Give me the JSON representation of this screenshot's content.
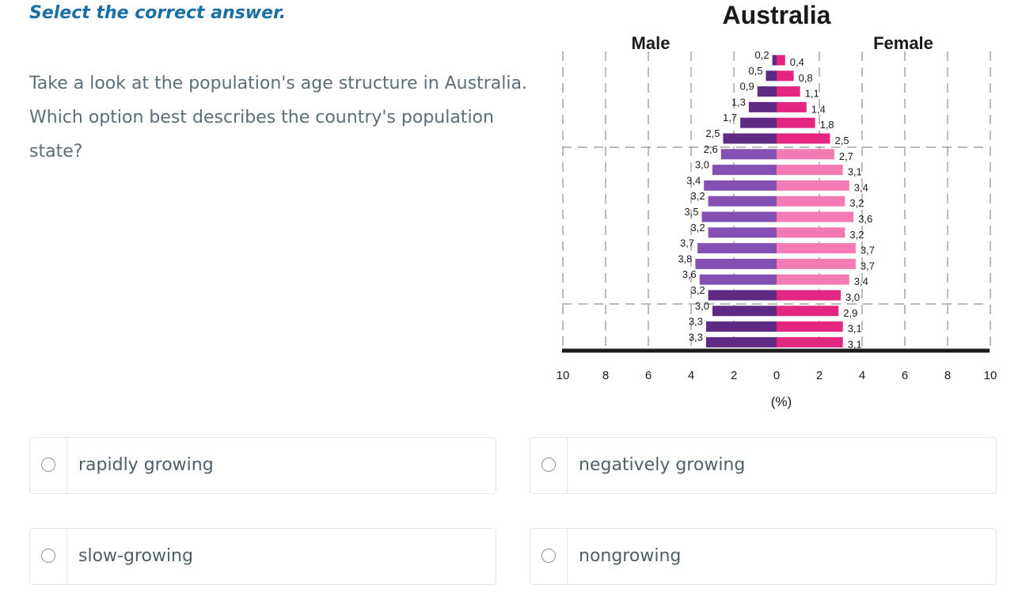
{
  "instruction": "Select the correct answer.",
  "question": "Take a look at the population's age structure in Australia. Which option best describes the country's population state?",
  "chart_data": {
    "type": "bar",
    "subtype": "population-pyramid",
    "title": "Australia",
    "left_label": "Male",
    "right_label": "Female",
    "xlabel": "(%)",
    "x_ticks": [
      "10",
      "8",
      "6",
      "4",
      "2",
      "0",
      "2",
      "4",
      "6",
      "8",
      "10"
    ],
    "xlim": [
      -10,
      10
    ],
    "grid": "dashed vertical lines; dashed horizontal lines separating age groups",
    "series": [
      {
        "name": "Male",
        "values": [
          0.2,
          0.5,
          0.9,
          1.3,
          1.7,
          2.5,
          2.6,
          3.0,
          3.4,
          3.2,
          3.5,
          3.2,
          3.7,
          3.8,
          3.6,
          3.2,
          3.0,
          3.3,
          3.3
        ],
        "labels": [
          "0,2",
          "0,5",
          "0,9",
          "1,3",
          "1,7",
          "2,5",
          "2,6",
          "3,0",
          "3,4",
          "3,2",
          "3,5",
          "3,2",
          "3,7",
          "3,8",
          "3,6",
          "3,2",
          "3,0",
          "3,3",
          "3,3"
        ]
      },
      {
        "name": "Female",
        "values": [
          0.4,
          0.8,
          1.1,
          1.4,
          1.8,
          2.5,
          2.7,
          3.1,
          3.4,
          3.2,
          3.6,
          3.2,
          3.7,
          3.7,
          3.4,
          3.0,
          2.9,
          3.1,
          3.1
        ],
        "labels": [
          "0,4",
          "0,8",
          "1,1",
          "1,4",
          "1,8",
          "2,5",
          "2,7",
          "3,1",
          "3,4",
          "3,2",
          "3,6",
          "3,2",
          "3,7",
          "3,7",
          "3,4",
          "3,0",
          "2,9",
          "3,1",
          "3,1"
        ]
      }
    ],
    "colors": {
      "male_dark": "#5e2a84",
      "male_light": "#8550b4",
      "female_dark": "#e3267f",
      "female_light": "#f47ab4"
    }
  },
  "options": [
    {
      "label": "rapidly growing"
    },
    {
      "label": "negatively growing"
    },
    {
      "label": "slow-growing"
    },
    {
      "label": "nongrowing"
    }
  ]
}
